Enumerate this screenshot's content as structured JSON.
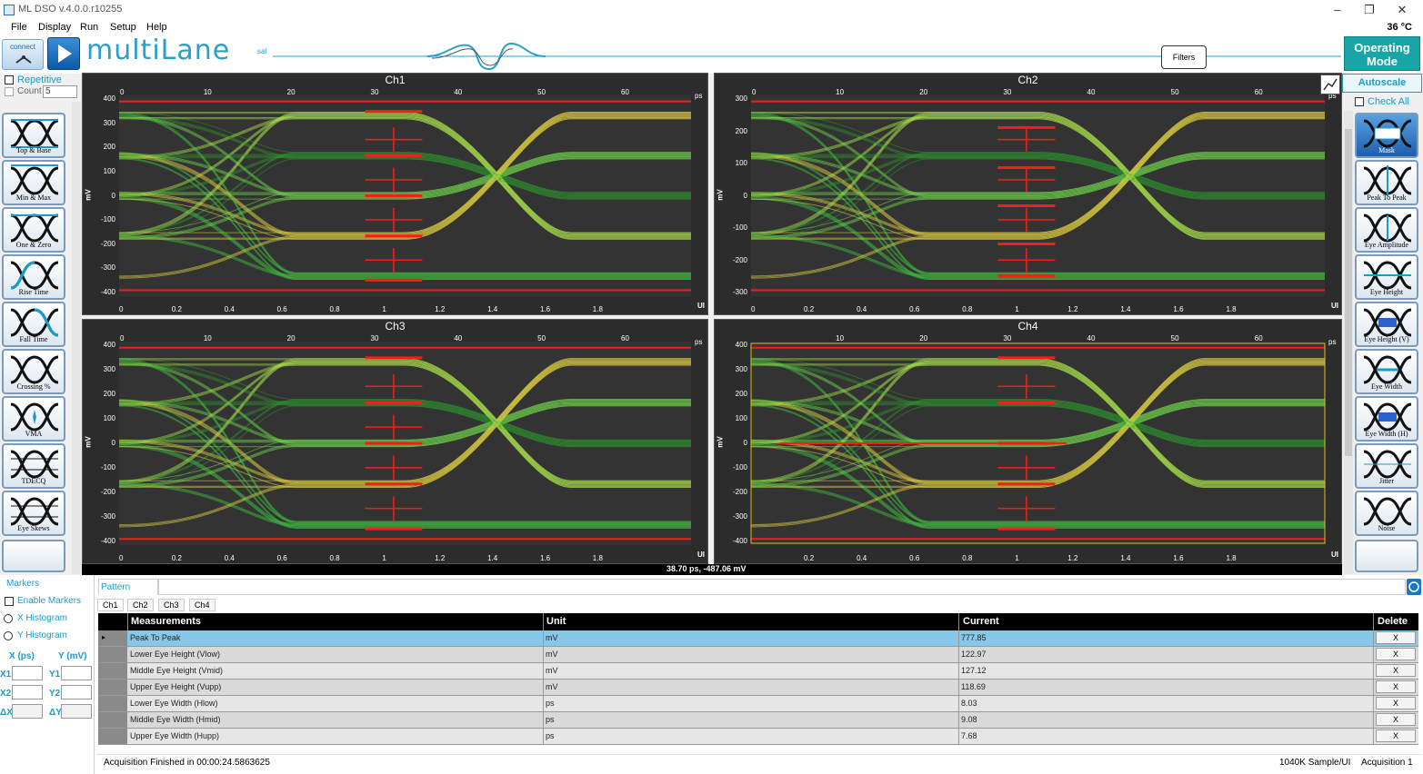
{
  "window": {
    "title": "ML DSO v.4.0.0.r10255",
    "minimize": "–",
    "restore": "❐",
    "close": "✕"
  },
  "menu": [
    "File",
    "Display",
    "Run",
    "Setup",
    "Help"
  ],
  "temperature": "36 °C",
  "header": {
    "connect_label": "connect",
    "logo_main": "multiLane",
    "logo_suffix": "sal",
    "filters_label": "Filters",
    "operating_mode_line1": "Operating",
    "operating_mode_line2": "Mode",
    "autoscale_label": "Autoscale",
    "check_all_label": "Check All"
  },
  "left_panel": {
    "repetitive_label": "Repetitive",
    "count_label": "Count",
    "count_value": "5",
    "buttons": [
      "Top & Base",
      "Min & Max",
      "One & Zero",
      "Rise Time",
      "Fall Time",
      "Crossing %",
      "VMA",
      "TDECQ",
      "Eye Skews"
    ]
  },
  "right_panel": {
    "buttons": [
      "Mask",
      "Peak To Peak",
      "Eye Amplitude",
      "Eye Height",
      "Eye Height (V)",
      "Eye Width",
      "Eye Width (H)",
      "Jitter",
      "Noise"
    ]
  },
  "plots": [
    {
      "name": "Ch1",
      "y_ticks": [
        "400",
        "300",
        "200",
        "100",
        "0",
        "-100",
        "-200",
        "-300",
        "-400"
      ]
    },
    {
      "name": "Ch2",
      "y_ticks": [
        "300",
        "200",
        "100",
        "0",
        "-100",
        "-200",
        "-300"
      ]
    },
    {
      "name": "Ch3",
      "y_ticks": [
        "400",
        "300",
        "200",
        "100",
        "0",
        "-100",
        "-200",
        "-300",
        "-400"
      ]
    },
    {
      "name": "Ch4",
      "y_ticks": [
        "400",
        "300",
        "200",
        "100",
        "0",
        "-100",
        "-200",
        "-300",
        "-400"
      ]
    }
  ],
  "axes": {
    "ps_ticks": [
      "0",
      "10",
      "20",
      "30",
      "40",
      "50",
      "60"
    ],
    "ps_unit": "ps",
    "ui_ticks": [
      "0",
      "0.2",
      "0.4",
      "0.6",
      "0.8",
      "1",
      "1.2",
      "1.4",
      "1.6",
      "1.8"
    ],
    "ui_ticks_ch4": [
      "0.2",
      "0.4",
      "0.6",
      "0.8",
      "1",
      "1.2",
      "1.4",
      "1.6",
      "1.8"
    ],
    "ui_unit": "UI",
    "y_unit": "mV"
  },
  "cursor_readout": "38.70 ps, -487.06 mV",
  "markers": {
    "title": "Markers",
    "enable_label": "Enable Markers",
    "x_hist_label": "X Histogram",
    "y_hist_label": "Y Histogram",
    "x_header": "X (ps)",
    "y_header": "Y (mV)",
    "x1": "X1",
    "y1": "Y1",
    "x2": "X2",
    "y2": "Y2",
    "dx": "ΔX",
    "dy": "ΔY"
  },
  "pattern_label": "Pattern",
  "channel_tabs": [
    "Ch1",
    "Ch2",
    "Ch3",
    "Ch4"
  ],
  "table": {
    "headers": [
      "Measurements",
      "Unit",
      "Current",
      "Delete"
    ],
    "rows": [
      {
        "name": "Peak To Peak",
        "unit": "mV",
        "current": "777.85",
        "del": "X"
      },
      {
        "name": "Lower Eye Height (Vlow)",
        "unit": "mV",
        "current": "122.97",
        "del": "X"
      },
      {
        "name": "Middle Eye Height (Vmid)",
        "unit": "mV",
        "current": "127.12",
        "del": "X"
      },
      {
        "name": "Upper Eye Height (Vupp)",
        "unit": "mV",
        "current": "118.69",
        "del": "X"
      },
      {
        "name": "Lower Eye Width (Hlow)",
        "unit": "ps",
        "current": "8.03",
        "del": "X"
      },
      {
        "name": "Middle Eye Width (Hmid)",
        "unit": "ps",
        "current": "9.08",
        "del": "X"
      },
      {
        "name": "Upper Eye Width (Hupp)",
        "unit": "ps",
        "current": "7.68",
        "del": "X"
      }
    ]
  },
  "status": {
    "left": "Acquisition Finished in 00:00:24.5863625",
    "rate": "1040K Sample/UI",
    "acq": "Acquisition 1"
  },
  "colors": {
    "accent": "#1a9cc9",
    "teal": "#19a5a8",
    "plot_bg": "#2c2c2c",
    "eye_green": "#3fbf3f",
    "level_red": "#ff1a1a",
    "selected_row": "#87c8e8"
  }
}
